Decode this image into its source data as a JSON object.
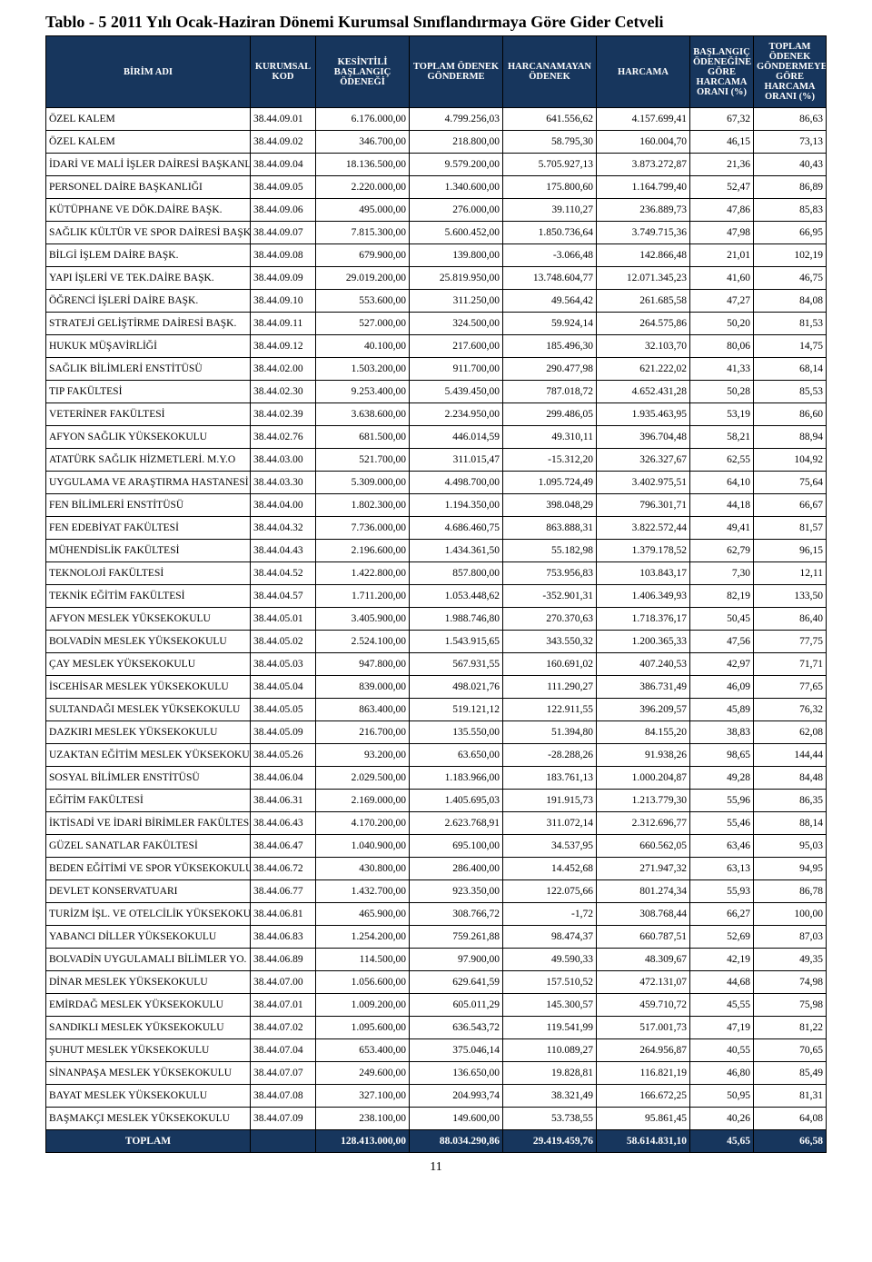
{
  "title": "Tablo - 5 2011 Yılı Ocak-Haziran Dönemi Kurumsal Sınıflandırmaya Göre Gider Cetveli",
  "page_number": "11",
  "header_bg": "#17365d",
  "header_fg": "#ffffff",
  "columns": [
    "BİRİM ADI",
    "KURUMSAL KOD",
    "KESİNTİLİ BAŞLANGIÇ ÖDENEĞİ",
    "TOPLAM ÖDENEK GÖNDERME",
    "HARCANAMAYAN ÖDENEK",
    "HARCAMA",
    "BAŞLANGIÇ ÖDENEĞİNE GÖRE HARCAMA ORANI (%)",
    "TOPLAM ÖDENEK GÖNDERMEYE GÖRE HARCAMA ORANI (%)"
  ],
  "rows": [
    [
      "ÖZEL KALEM",
      "38.44.09.01",
      "6.176.000,00",
      "4.799.256,03",
      "641.556,62",
      "4.157.699,41",
      "67,32",
      "86,63"
    ],
    [
      "ÖZEL KALEM",
      "38.44.09.02",
      "346.700,00",
      "218.800,00",
      "58.795,30",
      "160.004,70",
      "46,15",
      "73,13"
    ],
    [
      "İDARİ VE MALİ İŞLER DAİRESİ BAŞKANLIĞI",
      "38.44.09.04",
      "18.136.500,00",
      "9.579.200,00",
      "5.705.927,13",
      "3.873.272,87",
      "21,36",
      "40,43"
    ],
    [
      "PERSONEL DAİRE BAŞKANLIĞI",
      "38.44.09.05",
      "2.220.000,00",
      "1.340.600,00",
      "175.800,60",
      "1.164.799,40",
      "52,47",
      "86,89"
    ],
    [
      "KÜTÜPHANE VE DÖK.DAİRE BAŞK.",
      "38.44.09.06",
      "495.000,00",
      "276.000,00",
      "39.110,27",
      "236.889,73",
      "47,86",
      "85,83"
    ],
    [
      "SAĞLIK KÜLTÜR VE SPOR DAİRESİ BAŞK.",
      "38.44.09.07",
      "7.815.300,00",
      "5.600.452,00",
      "1.850.736,64",
      "3.749.715,36",
      "47,98",
      "66,95"
    ],
    [
      "BİLGİ İŞLEM DAİRE BAŞK.",
      "38.44.09.08",
      "679.900,00",
      "139.800,00",
      "-3.066,48",
      "142.866,48",
      "21,01",
      "102,19"
    ],
    [
      "YAPI İŞLERİ VE TEK.DAİRE BAŞK.",
      "38.44.09.09",
      "29.019.200,00",
      "25.819.950,00",
      "13.748.604,77",
      "12.071.345,23",
      "41,60",
      "46,75"
    ],
    [
      "ÖĞRENCİ İŞLERİ DAİRE BAŞK.",
      "38.44.09.10",
      "553.600,00",
      "311.250,00",
      "49.564,42",
      "261.685,58",
      "47,27",
      "84,08"
    ],
    [
      "STRATEJİ GELİŞTİRME DAİRESİ BAŞK.",
      "38.44.09.11",
      "527.000,00",
      "324.500,00",
      "59.924,14",
      "264.575,86",
      "50,20",
      "81,53"
    ],
    [
      "HUKUK MÜŞAVİRLİĞİ",
      "38.44.09.12",
      "40.100,00",
      "217.600,00",
      "185.496,30",
      "32.103,70",
      "80,06",
      "14,75"
    ],
    [
      "SAĞLIK BİLİMLERİ ENSTİTÜSÜ",
      "38.44.02.00",
      "1.503.200,00",
      "911.700,00",
      "290.477,98",
      "621.222,02",
      "41,33",
      "68,14"
    ],
    [
      "TIP FAKÜLTESİ",
      "38.44.02.30",
      "9.253.400,00",
      "5.439.450,00",
      "787.018,72",
      "4.652.431,28",
      "50,28",
      "85,53"
    ],
    [
      "VETERİNER FAKÜLTESİ",
      "38.44.02.39",
      "3.638.600,00",
      "2.234.950,00",
      "299.486,05",
      "1.935.463,95",
      "53,19",
      "86,60"
    ],
    [
      "AFYON SAĞLIK YÜKSEKOKULU",
      "38.44.02.76",
      "681.500,00",
      "446.014,59",
      "49.310,11",
      "396.704,48",
      "58,21",
      "88,94"
    ],
    [
      "ATATÜRK SAĞLIK HİZMETLERİ. M.Y.O",
      "38.44.03.00",
      "521.700,00",
      "311.015,47",
      "-15.312,20",
      "326.327,67",
      "62,55",
      "104,92"
    ],
    [
      "UYGULAMA VE ARAŞTIRMA HASTANESİ",
      "38.44.03.30",
      "5.309.000,00",
      "4.498.700,00",
      "1.095.724,49",
      "3.402.975,51",
      "64,10",
      "75,64"
    ],
    [
      "FEN BİLİMLERİ ENSTİTÜSÜ",
      "38.44.04.00",
      "1.802.300,00",
      "1.194.350,00",
      "398.048,29",
      "796.301,71",
      "44,18",
      "66,67"
    ],
    [
      "FEN EDEBİYAT FAKÜLTESİ",
      "38.44.04.32",
      "7.736.000,00",
      "4.686.460,75",
      "863.888,31",
      "3.822.572,44",
      "49,41",
      "81,57"
    ],
    [
      "MÜHENDİSLİK FAKÜLTESİ",
      "38.44.04.43",
      "2.196.600,00",
      "1.434.361,50",
      "55.182,98",
      "1.379.178,52",
      "62,79",
      "96,15"
    ],
    [
      "TEKNOLOJİ FAKÜLTESİ",
      "38.44.04.52",
      "1.422.800,00",
      "857.800,00",
      "753.956,83",
      "103.843,17",
      "7,30",
      "12,11"
    ],
    [
      "TEKNİK EĞİTİM FAKÜLTESİ",
      "38.44.04.57",
      "1.711.200,00",
      "1.053.448,62",
      "-352.901,31",
      "1.406.349,93",
      "82,19",
      "133,50"
    ],
    [
      "AFYON MESLEK YÜKSEKOKULU",
      "38.44.05.01",
      "3.405.900,00",
      "1.988.746,80",
      "270.370,63",
      "1.718.376,17",
      "50,45",
      "86,40"
    ],
    [
      "BOLVADİN MESLEK YÜKSEKOKULU",
      "38.44.05.02",
      "2.524.100,00",
      "1.543.915,65",
      "343.550,32",
      "1.200.365,33",
      "47,56",
      "77,75"
    ],
    [
      "ÇAY MESLEK YÜKSEKOKULU",
      "38.44.05.03",
      "947.800,00",
      "567.931,55",
      "160.691,02",
      "407.240,53",
      "42,97",
      "71,71"
    ],
    [
      "İSCEHİSAR MESLEK YÜKSEKOKULU",
      "38.44.05.04",
      "839.000,00",
      "498.021,76",
      "111.290,27",
      "386.731,49",
      "46,09",
      "77,65"
    ],
    [
      "SULTANDAĞI MESLEK YÜKSEKOKULU",
      "38.44.05.05",
      "863.400,00",
      "519.121,12",
      "122.911,55",
      "396.209,57",
      "45,89",
      "76,32"
    ],
    [
      "DAZKIRI MESLEK YÜKSEKOKULU",
      "38.44.05.09",
      "216.700,00",
      "135.550,00",
      "51.394,80",
      "84.155,20",
      "38,83",
      "62,08"
    ],
    [
      "UZAKTAN EĞİTİM MESLEK YÜKSEKOKULU",
      "38.44.05.26",
      "93.200,00",
      "63.650,00",
      "-28.288,26",
      "91.938,26",
      "98,65",
      "144,44"
    ],
    [
      "SOSYAL BİLİMLER ENSTİTÜSÜ",
      "38.44.06.04",
      "2.029.500,00",
      "1.183.966,00",
      "183.761,13",
      "1.000.204,87",
      "49,28",
      "84,48"
    ],
    [
      "EĞİTİM FAKÜLTESİ",
      "38.44.06.31",
      "2.169.000,00",
      "1.405.695,03",
      "191.915,73",
      "1.213.779,30",
      "55,96",
      "86,35"
    ],
    [
      "İKTİSADİ VE İDARİ BİRİMLER FAKÜLTESİ",
      "38.44.06.43",
      "4.170.200,00",
      "2.623.768,91",
      "311.072,14",
      "2.312.696,77",
      "55,46",
      "88,14"
    ],
    [
      "GÜZEL SANATLAR FAKÜLTESİ",
      "38.44.06.47",
      "1.040.900,00",
      "695.100,00",
      "34.537,95",
      "660.562,05",
      "63,46",
      "95,03"
    ],
    [
      "BEDEN EĞİTİMİ VE SPOR YÜKSEKOKULU",
      "38.44.06.72",
      "430.800,00",
      "286.400,00",
      "14.452,68",
      "271.947,32",
      "63,13",
      "94,95"
    ],
    [
      "DEVLET KONSERVATUARI",
      "38.44.06.77",
      "1.432.700,00",
      "923.350,00",
      "122.075,66",
      "801.274,34",
      "55,93",
      "86,78"
    ],
    [
      "TURİZM İŞL. VE OTELCİLİK YÜKSEKOKULU",
      "38.44.06.81",
      "465.900,00",
      "308.766,72",
      "-1,72",
      "308.768,44",
      "66,27",
      "100,00"
    ],
    [
      "YABANCI DİLLER YÜKSEKOKULU",
      "38.44.06.83",
      "1.254.200,00",
      "759.261,88",
      "98.474,37",
      "660.787,51",
      "52,69",
      "87,03"
    ],
    [
      "BOLVADİN UYGULAMALI BİLİMLER YO.",
      "38.44.06.89",
      "114.500,00",
      "97.900,00",
      "49.590,33",
      "48.309,67",
      "42,19",
      "49,35"
    ],
    [
      "DİNAR MESLEK YÜKSEKOKULU",
      "38.44.07.00",
      "1.056.600,00",
      "629.641,59",
      "157.510,52",
      "472.131,07",
      "44,68",
      "74,98"
    ],
    [
      "EMİRDAĞ MESLEK YÜKSEKOKULU",
      "38.44.07.01",
      "1.009.200,00",
      "605.011,29",
      "145.300,57",
      "459.710,72",
      "45,55",
      "75,98"
    ],
    [
      "SANDIKLI MESLEK YÜKSEKOKULU",
      "38.44.07.02",
      "1.095.600,00",
      "636.543,72",
      "119.541,99",
      "517.001,73",
      "47,19",
      "81,22"
    ],
    [
      "ŞUHUT MESLEK YÜKSEKOKULU",
      "38.44.07.04",
      "653.400,00",
      "375.046,14",
      "110.089,27",
      "264.956,87",
      "40,55",
      "70,65"
    ],
    [
      "SİNANPAŞA MESLEK YÜKSEKOKULU",
      "38.44.07.07",
      "249.600,00",
      "136.650,00",
      "19.828,81",
      "116.821,19",
      "46,80",
      "85,49"
    ],
    [
      "BAYAT MESLEK YÜKSEKOKULU",
      "38.44.07.08",
      "327.100,00",
      "204.993,74",
      "38.321,49",
      "166.672,25",
      "50,95",
      "81,31"
    ],
    [
      "BAŞMAKÇI MESLEK YÜKSEKOKULU",
      "38.44.07.09",
      "238.100,00",
      "149.600,00",
      "53.738,55",
      "95.861,45",
      "40,26",
      "64,08"
    ]
  ],
  "total_row": [
    "TOPLAM",
    "",
    "128.413.000,00",
    "88.034.290,86",
    "29.419.459,76",
    "58.614.831,10",
    "45,65",
    "66,58"
  ]
}
